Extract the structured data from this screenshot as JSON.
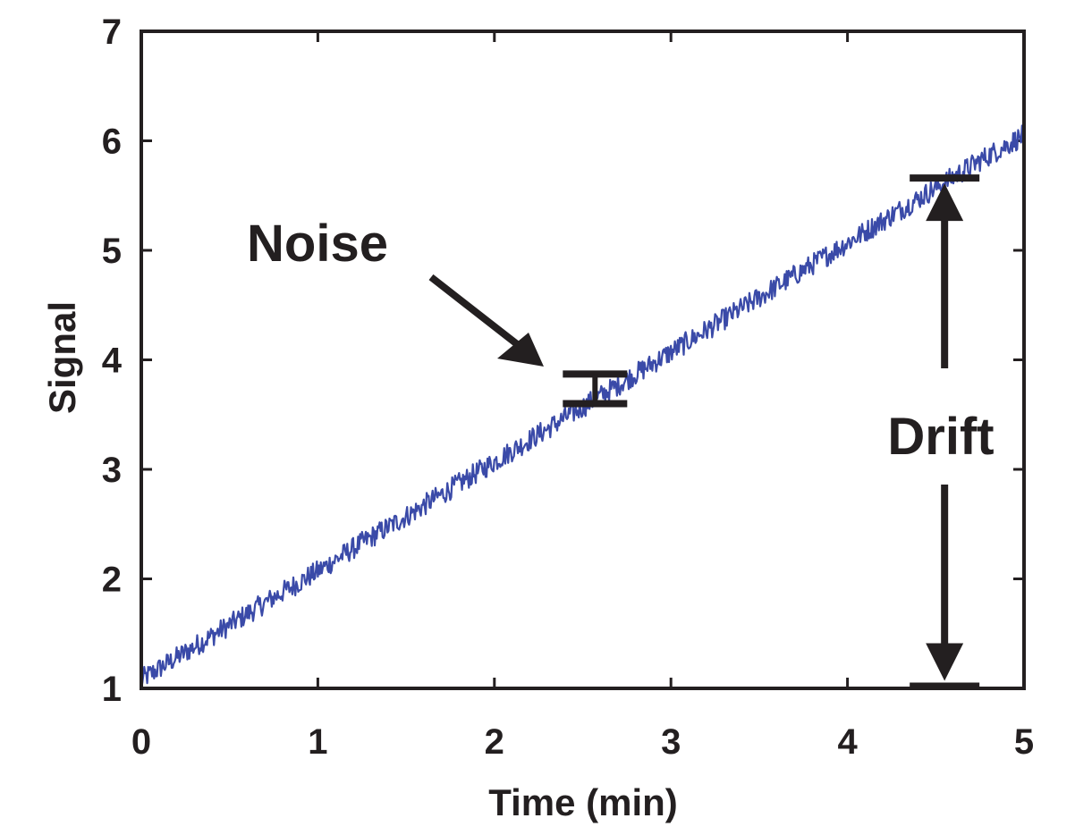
{
  "chart_data": {
    "type": "line",
    "xlabel": "Time (min)",
    "ylabel": "Signal",
    "xlim": [
      0,
      5
    ],
    "ylim": [
      1,
      7
    ],
    "xticks": [
      "0",
      "1",
      "2",
      "3",
      "4",
      "5"
    ],
    "yticks": [
      "1",
      "2",
      "3",
      "4",
      "5",
      "6",
      "7"
    ],
    "grid": false,
    "line_color": "#3a4aa8",
    "series": [
      {
        "x": [
          0,
          0.25,
          0.5,
          0.75,
          1,
          1.25,
          1.5,
          1.75,
          2,
          2.25,
          2.5,
          2.75,
          3,
          3.25,
          3.5,
          3.75,
          4,
          4.25,
          4.5,
          4.75,
          5
        ],
        "y": [
          1.08,
          1.33,
          1.58,
          1.83,
          2.07,
          2.33,
          2.57,
          2.82,
          3.07,
          3.32,
          3.57,
          3.82,
          4.07,
          4.32,
          4.57,
          4.82,
          5.07,
          5.32,
          5.57,
          5.82,
          6.05
        ],
        "noise_amplitude": 0.1
      }
    ],
    "annotations": [
      {
        "id": "noise",
        "text": "Noise",
        "bar_x": 2.57,
        "bar_y_low": 3.6,
        "bar_y_high": 3.87
      },
      {
        "id": "drift",
        "text": "Drift",
        "x": 4.55,
        "y_low": 1.02,
        "y_high": 5.66
      }
    ]
  }
}
